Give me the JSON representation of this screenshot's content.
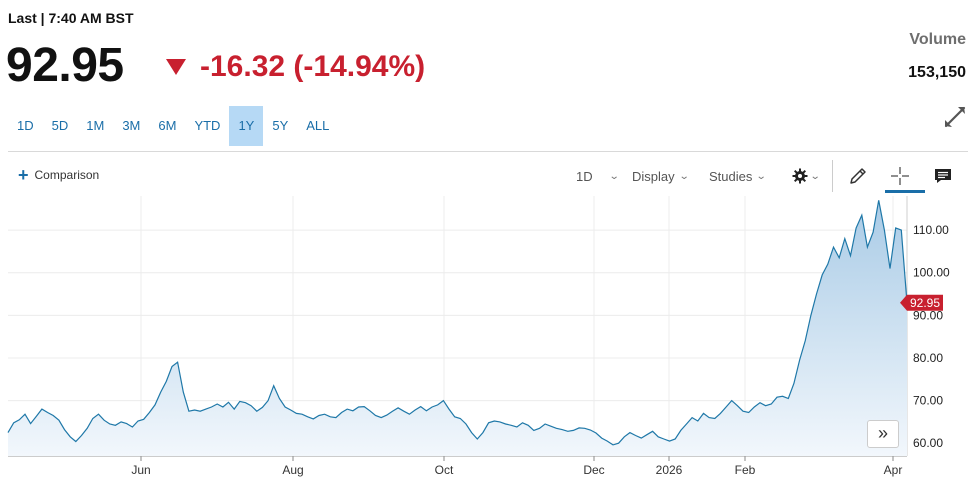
{
  "quote": {
    "last_label": "Last | 7:40 AM BST",
    "price": "92.95",
    "change": "-16.32 (-14.94%)",
    "volume_label": "Volume",
    "volume_value": "153,150"
  },
  "ranges": [
    "1D",
    "5D",
    "1M",
    "3M",
    "6M",
    "YTD",
    "1Y",
    "5Y",
    "ALL"
  ],
  "active_range": "1Y",
  "toolbar": {
    "comparison": "Comparison",
    "interval": "1D",
    "display": "Display",
    "studies": "Studies"
  },
  "colors": {
    "line": "#1f78a8",
    "area_top": "#a9cbe6",
    "area_bottom": "#f2f7fc",
    "down": "#c8202f",
    "accent": "#1a6ea8"
  },
  "icons": [
    "down-triangle-icon",
    "expand-icon",
    "plus-icon",
    "gear-icon",
    "pencil-icon",
    "crosshair-icon",
    "comment-icon",
    "double-chevron-right-icon"
  ],
  "chart_data": {
    "type": "area",
    "x_tick_labels": [
      "Jun",
      "Aug",
      "Oct",
      "Dec",
      "2026",
      "Feb",
      "Apr"
    ],
    "y_ticks": [
      60,
      70,
      80,
      90,
      100,
      110
    ],
    "y_tick_labels": [
      "60.00",
      "70.00",
      "80.00",
      "90.00",
      "100.00",
      "110.00"
    ],
    "ylim": [
      57,
      118
    ],
    "grid": true,
    "last_value_label": "92.95",
    "last_value": 92.95,
    "series": [
      {
        "values": [
          62.5,
          64.8,
          65.5,
          66.8,
          64.6,
          66.3,
          68.0,
          67.2,
          66.5,
          65.4,
          63.2,
          61.5,
          60.4,
          61.8,
          63.5,
          65.8,
          66.8,
          65.4,
          64.5,
          64.2,
          65.0,
          64.6,
          63.8,
          65.2,
          65.6,
          67.2,
          69.0,
          72.0,
          74.5,
          78.0,
          79.0,
          72.0,
          67.5,
          67.8,
          67.5,
          68.0,
          68.5,
          69.2,
          68.5,
          69.6,
          68.0,
          69.8,
          69.5,
          68.8,
          67.5,
          68.4,
          70.0,
          73.5,
          70.5,
          68.5,
          67.8,
          67.0,
          66.8,
          66.2,
          65.7,
          66.5,
          66.8,
          66.2,
          66.0,
          67.2,
          68.0,
          67.6,
          68.5,
          68.6,
          67.6,
          66.5,
          66.0,
          66.6,
          67.5,
          68.3,
          67.5,
          66.8,
          67.8,
          68.6,
          67.6,
          68.5,
          69.0,
          70.0,
          68.0,
          66.2,
          65.8,
          64.5,
          62.5,
          61.0,
          62.5,
          64.8,
          65.2,
          65.0,
          64.5,
          64.2,
          63.8,
          64.8,
          64.2,
          63.0,
          63.5,
          64.5,
          64.0,
          63.5,
          63.2,
          62.8,
          63.0,
          63.6,
          63.5,
          63.1,
          62.4,
          61.2,
          60.5,
          59.6,
          60.0,
          61.5,
          62.5,
          61.8,
          61.2,
          62.0,
          62.8,
          61.5,
          61.0,
          60.5,
          61.0,
          63.0,
          64.5,
          66.0,
          65.2,
          67.0,
          66.0,
          65.8,
          67.0,
          68.5,
          70.0,
          68.8,
          67.5,
          67.2,
          68.5,
          69.5,
          68.8,
          69.2,
          70.8,
          71.0,
          70.5,
          74.0,
          79.5,
          84.0,
          90.0,
          95.0,
          99.5,
          102.0,
          106.0,
          103.5,
          108.0,
          104.0,
          110.5,
          113.5,
          106.0,
          109.5,
          117.0,
          110.0,
          101.0,
          110.5,
          110.0,
          92.95
        ]
      }
    ]
  }
}
